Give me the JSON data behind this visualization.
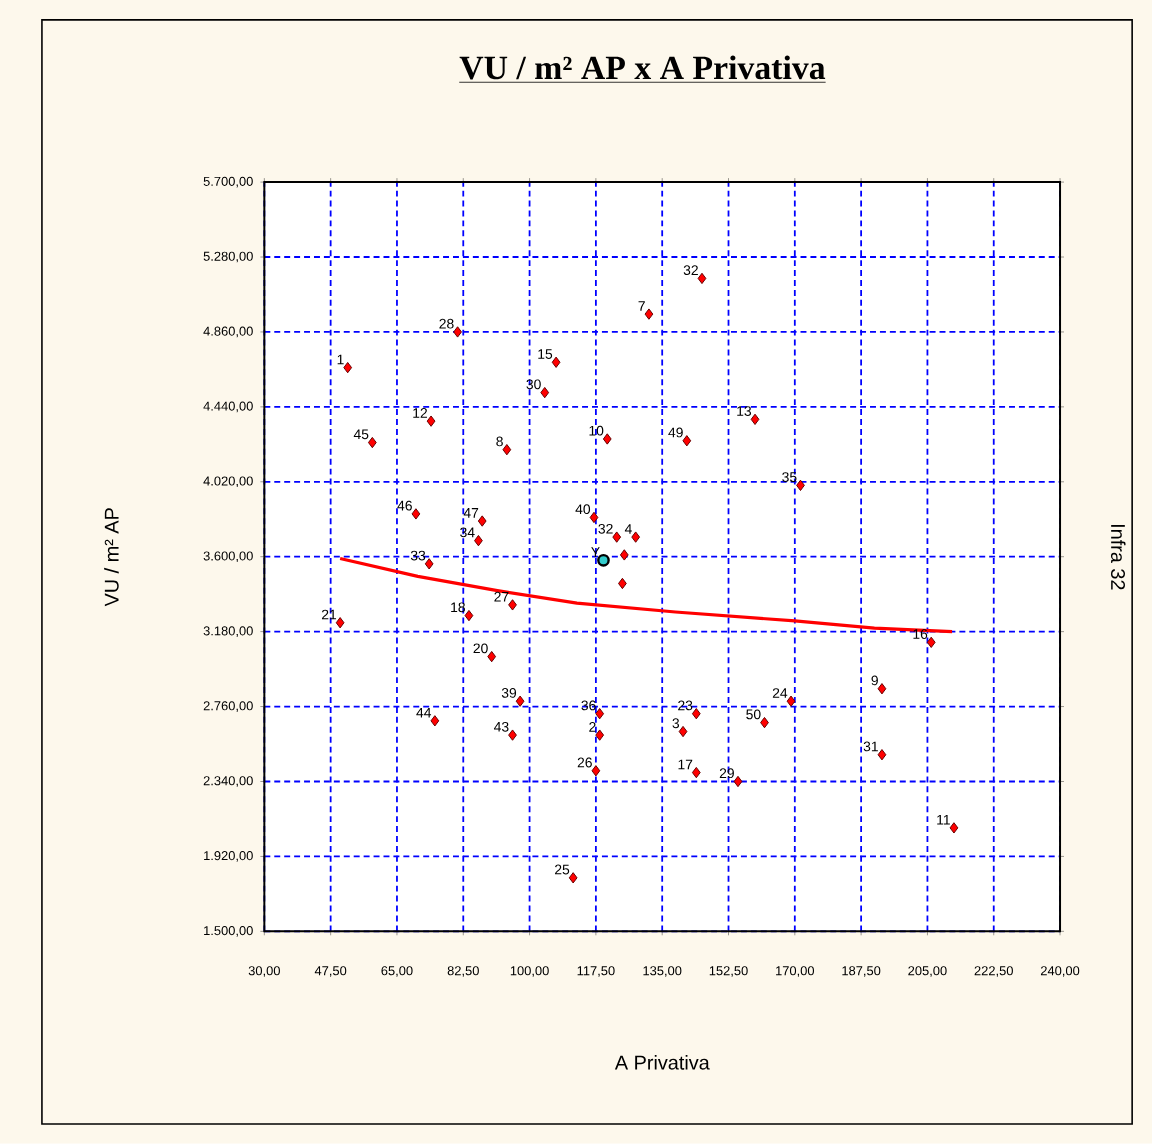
{
  "chart_data": {
    "type": "scatter",
    "title": "VU / m² AP x A Privativa",
    "xlabel": "A Privativa",
    "ylabel": "VU / m² AP",
    "y2label": "Infra 32",
    "xlim": [
      30,
      240
    ],
    "ylim": [
      1500,
      5700
    ],
    "grid": true,
    "xticks": [
      {
        "value": 30,
        "label": "30,00"
      },
      {
        "value": 47.5,
        "label": "47,50"
      },
      {
        "value": 65,
        "label": "65,00"
      },
      {
        "value": 82.5,
        "label": "82,50"
      },
      {
        "value": 100,
        "label": "100,00"
      },
      {
        "value": 117.5,
        "label": "117,50"
      },
      {
        "value": 135,
        "label": "135,00"
      },
      {
        "value": 152.5,
        "label": "152,50"
      },
      {
        "value": 170,
        "label": "170,00"
      },
      {
        "value": 187.5,
        "label": "187,50"
      },
      {
        "value": 205,
        "label": "205,00"
      },
      {
        "value": 222.5,
        "label": "222,50"
      },
      {
        "value": 240,
        "label": "240,00"
      }
    ],
    "yticks": [
      {
        "value": 1500,
        "label": "1.500,00"
      },
      {
        "value": 1920,
        "label": "1.920,00"
      },
      {
        "value": 2340,
        "label": "2.340,00"
      },
      {
        "value": 2760,
        "label": "2.760,00"
      },
      {
        "value": 3180,
        "label": "3.180,00"
      },
      {
        "value": 3600,
        "label": "3.600,00"
      },
      {
        "value": 4020,
        "label": "4.020,00"
      },
      {
        "value": 4440,
        "label": "4.440,00"
      },
      {
        "value": 4860,
        "label": "4.860,00"
      },
      {
        "value": 5280,
        "label": "5.280,00"
      },
      {
        "value": 5700,
        "label": "5.700,00"
      }
    ],
    "series": [
      {
        "marker": "diamond",
        "color": "#ff0000",
        "x": [
          52,
          81,
          107,
          104,
          74,
          58.5,
          94,
          120.5,
          70,
          87.5,
          86.5,
          73.5,
          84,
          95.5,
          90,
          97.5,
          95.5,
          75,
          50,
          118.5,
          118.5,
          117.5,
          111.5,
          117,
          123,
          128,
          125,
          124.5,
          145.5,
          131.5,
          159.5,
          141.5,
          171.5,
          206,
          193,
          169,
          162,
          144,
          140.5,
          144,
          155,
          193,
          212
        ],
        "values": [
          4660,
          4860,
          4690,
          4520,
          4360,
          4240,
          4200,
          4260,
          3840,
          3800,
          3690,
          3560,
          3270,
          3330,
          3040,
          2790,
          2600,
          2680,
          3230,
          2720,
          2600,
          2400,
          1800,
          3820,
          3710,
          3710,
          3610,
          3450,
          5160,
          4960,
          4370,
          4250,
          4000,
          3120,
          2860,
          2790,
          2670,
          2720,
          2620,
          2390,
          2340,
          2490,
          2080
        ]
      },
      {
        "marker": "circle",
        "color": "#33cccc",
        "x": [
          119.5
        ],
        "values": [
          3580
        ]
      },
      {
        "type": "line",
        "marker": "none",
        "color": "#ff0000",
        "x": [
          50,
          70.5,
          91.5,
          112.5,
          138.5,
          170,
          191,
          211.5
        ],
        "values": [
          3590,
          3490,
          3410,
          3340,
          3290,
          3240,
          3200,
          3180
        ]
      }
    ],
    "annotations": [
      {
        "text": "1",
        "x": 52,
        "y": 4660
      },
      {
        "text": "28",
        "x": 81,
        "y": 4860
      },
      {
        "text": "15",
        "x": 107,
        "y": 4690
      },
      {
        "text": "30",
        "x": 104,
        "y": 4520
      },
      {
        "text": "12",
        "x": 74,
        "y": 4360
      },
      {
        "text": "45",
        "x": 58.5,
        "y": 4240
      },
      {
        "text": "8",
        "x": 94,
        "y": 4200
      },
      {
        "text": "10",
        "x": 120.5,
        "y": 4260
      },
      {
        "text": "46",
        "x": 70,
        "y": 3840
      },
      {
        "text": "47",
        "x": 87.5,
        "y": 3800
      },
      {
        "text": "34",
        "x": 86.5,
        "y": 3690
      },
      {
        "text": "33",
        "x": 73.5,
        "y": 3560
      },
      {
        "text": "18",
        "x": 84,
        "y": 3270
      },
      {
        "text": "27",
        "x": 95.5,
        "y": 3330
      },
      {
        "text": "20",
        "x": 90,
        "y": 3040
      },
      {
        "text": "39",
        "x": 97.5,
        "y": 2790
      },
      {
        "text": "43",
        "x": 95.5,
        "y": 2600
      },
      {
        "text": "44",
        "x": 75,
        "y": 2680
      },
      {
        "text": "21",
        "x": 50,
        "y": 3230
      },
      {
        "text": "36",
        "x": 118.5,
        "y": 2720
      },
      {
        "text": "2",
        "x": 118.5,
        "y": 2600
      },
      {
        "text": "26",
        "x": 117.5,
        "y": 2400
      },
      {
        "text": "25",
        "x": 111.5,
        "y": 1800
      },
      {
        "text": "40",
        "x": 117,
        "y": 3820
      },
      {
        "text": "32",
        "x": 123,
        "y": 3710
      },
      {
        "text": "4",
        "x": 128,
        "y": 3710
      },
      {
        "text": "32",
        "x": 145.5,
        "y": 5160
      },
      {
        "text": "7",
        "x": 131.5,
        "y": 4960
      },
      {
        "text": "13",
        "x": 159.5,
        "y": 4370
      },
      {
        "text": "49",
        "x": 141.5,
        "y": 4250
      },
      {
        "text": "35",
        "x": 171.5,
        "y": 4000
      },
      {
        "text": "16",
        "x": 206,
        "y": 3120
      },
      {
        "text": "9",
        "x": 193,
        "y": 2860
      },
      {
        "text": "24",
        "x": 169,
        "y": 2790
      },
      {
        "text": "50",
        "x": 162,
        "y": 2670
      },
      {
        "text": "23",
        "x": 144,
        "y": 2720
      },
      {
        "text": "3",
        "x": 140.5,
        "y": 2620
      },
      {
        "text": "17",
        "x": 144,
        "y": 2390
      },
      {
        "text": "29",
        "x": 155,
        "y": 2340
      },
      {
        "text": "31",
        "x": 193,
        "y": 2490
      },
      {
        "text": "11",
        "x": 212,
        "y": 2080
      },
      {
        "text": "Y",
        "x": 119.5,
        "y": 3580
      }
    ]
  }
}
